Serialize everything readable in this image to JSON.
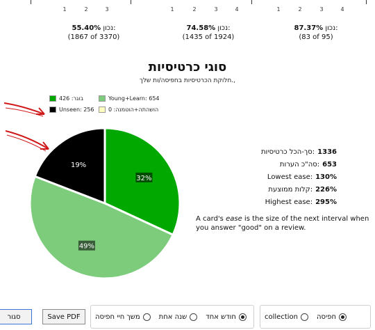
{
  "top_ticks": {
    "g1": [
      "1",
      "2",
      "3"
    ],
    "g2": [
      "1",
      "2",
      "3",
      "4"
    ],
    "g3": [
      "1",
      "2",
      "3",
      "4"
    ]
  },
  "accuracy": [
    {
      "label": "נכון:",
      "value": "55.40%",
      "detail": "(1867 of 3370)"
    },
    {
      "label": "נכון:",
      "value": "74.58%",
      "detail": "(1435 of 1924)"
    },
    {
      "label": "נכון:",
      "value": "87.37%",
      "detail": "(83 of 95)"
    }
  ],
  "card_types": {
    "title": "סוגי כרטיסיות",
    "subtitle": "חלוקת הכרטיסיות בחפיסה/ות שלך.,"
  },
  "legend": [
    {
      "text": "בוגר: 426",
      "color": "#00a800"
    },
    {
      "text": "Young+Learn: 654",
      "color": "#7ccc7c"
    },
    {
      "text": "Unseen: 256",
      "color": "#000000"
    },
    {
      "text": "הושהתה+הוטמנה: 0",
      "color": "#ffffc0"
    }
  ],
  "chart_data": {
    "type": "pie",
    "slices": [
      {
        "name": "בוגר",
        "value": 426,
        "label": "32%",
        "color": "#00a800"
      },
      {
        "name": "Young+Learn",
        "value": 654,
        "label": "49%",
        "color": "#7ccc7c"
      },
      {
        "name": "Unseen",
        "value": 256,
        "label": "19%",
        "color": "#000000"
      },
      {
        "name": "הושהתה+הוטמנה",
        "value": 0,
        "label": "",
        "color": "#ffffc0"
      }
    ]
  },
  "stats": [
    {
      "label": "סך-הכל כרטיסיות:",
      "value": "1336"
    },
    {
      "label": "סה\"כ הערות:",
      "value": "653"
    },
    {
      "label": "Lowest ease:",
      "value": "130%"
    },
    {
      "label": "קלות ממוצעת:",
      "value": "226%"
    },
    {
      "label": "Highest ease:",
      "value": "295%"
    }
  ],
  "ease_note": {
    "before": "A card's ",
    "em": "ease",
    "after": " is the size of the next interval when you answer \"good\" on a review."
  },
  "bottom": {
    "close_label": "סגור",
    "save_pdf_label": "Save PDF",
    "period_options": [
      {
        "label": "משך חיי חפיסה",
        "selected": false
      },
      {
        "label": "שנה אחת",
        "selected": false
      },
      {
        "label": "חודש אחד",
        "selected": true
      }
    ],
    "scope_options": [
      {
        "label": "collection",
        "selected": false
      },
      {
        "label": "חפיסה",
        "selected": true
      }
    ]
  }
}
